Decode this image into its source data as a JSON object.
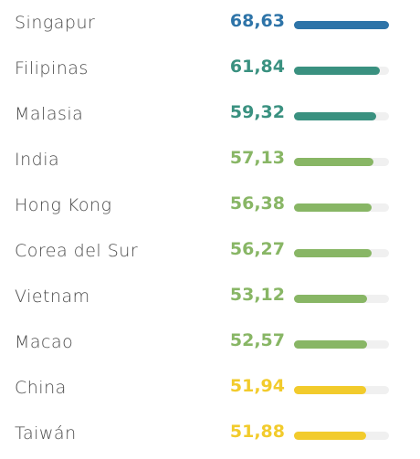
{
  "chart_data": {
    "type": "bar",
    "orientation": "horizontal",
    "categories": [
      "Singapur",
      "Filipinas",
      "Malasia",
      "India",
      "Hong Kong",
      "Corea del Sur",
      "Vietnam",
      "Macao",
      "China",
      "Taiwán"
    ],
    "values": [
      68.63,
      61.84,
      59.32,
      57.13,
      56.38,
      56.27,
      53.12,
      52.57,
      51.94,
      51.88
    ],
    "value_labels": [
      "68,63",
      "61,84",
      "59,32",
      "57,13",
      "56,38",
      "56,27",
      "53,12",
      "52,57",
      "51,94",
      "51,88"
    ],
    "bar_colors": [
      "#2e74a8",
      "#3a9180",
      "#3a9180",
      "#88b665",
      "#88b665",
      "#88b665",
      "#88b665",
      "#88b665",
      "#f2cb2c",
      "#f2cb2c"
    ],
    "track_color": "#f0f0f0",
    "xlim": [
      0,
      68.63
    ],
    "grid": false,
    "legend": "none"
  }
}
